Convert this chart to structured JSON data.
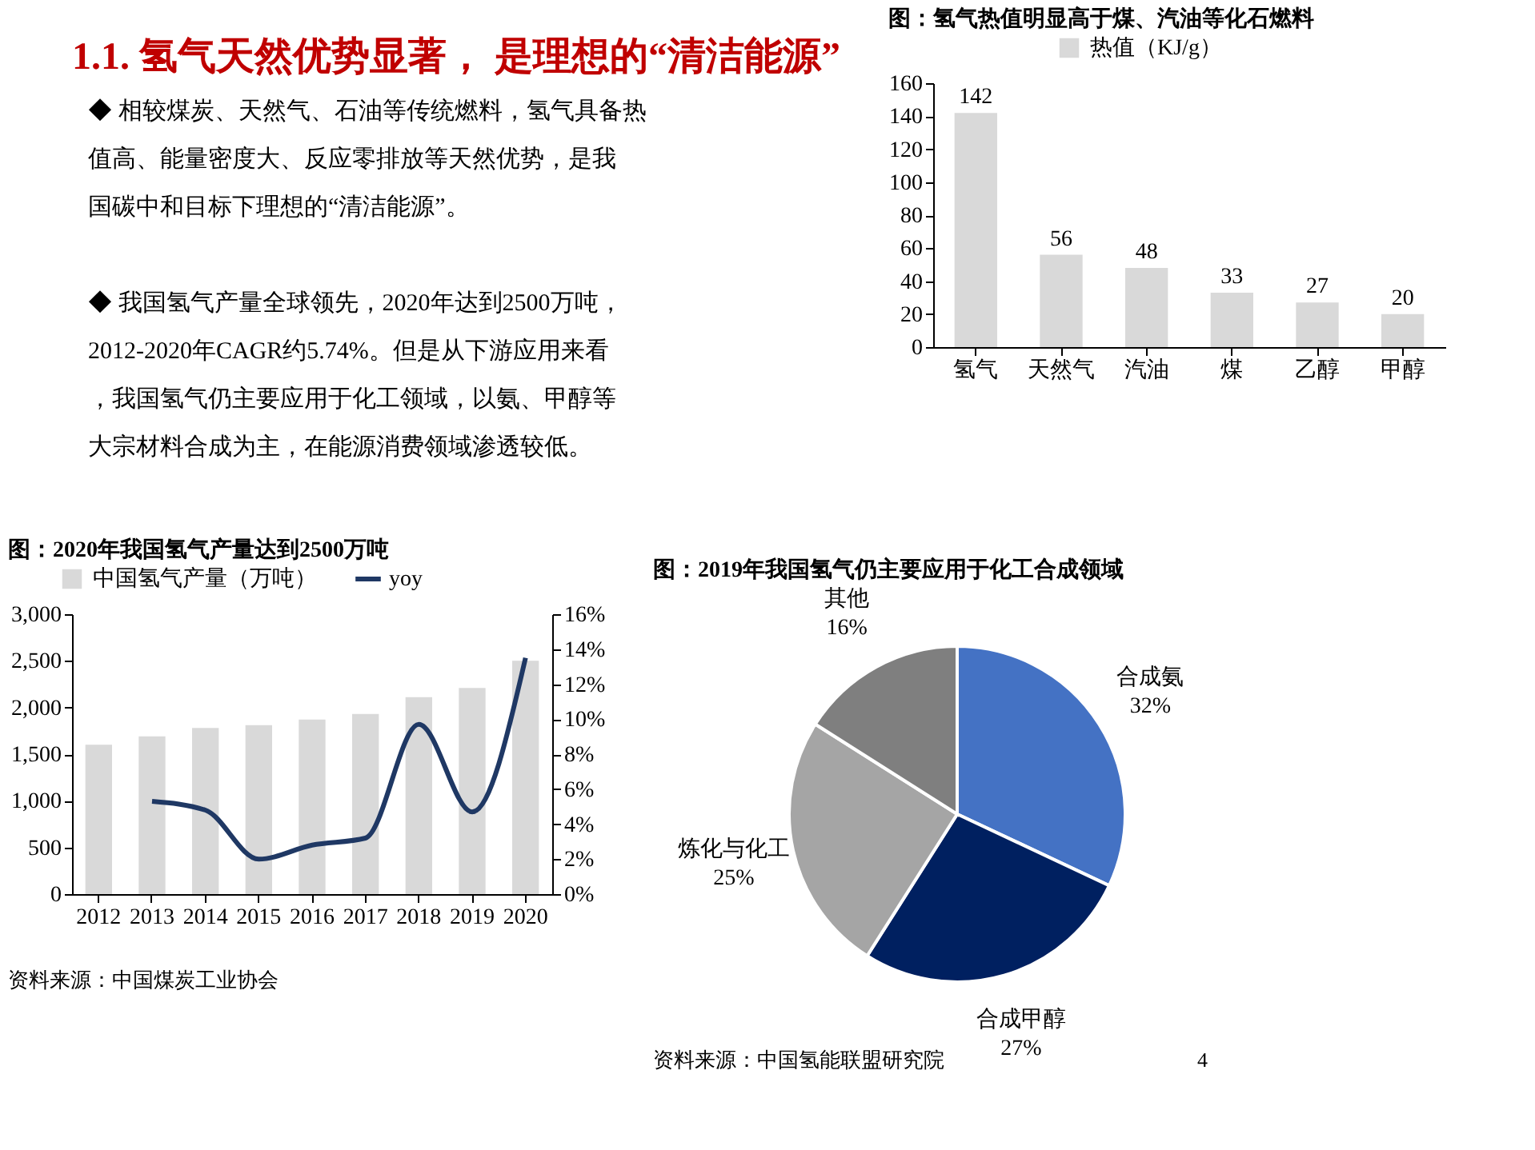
{
  "chart_data": [
    {
      "type": "other",
      "title": "1.1. 氢气天然优势显著， 是理想的“清洁能源”",
      "annotations": [
        "◆  相较煤炭、天然气、石油等传统燃料，氢气具备热值高、能量密度大、反应零排放等天然优势，是我国碳中和目标下理想的“清洁能源”。",
        "◆  我国氢气产量全球领先，2020年达到2500万吨，2012-2020年CAGR约5.74%。但是从下游应用来看，我国氢气仍主要应用于化工领域，以氨、甲醇等大宗材料合成为主，在能源消费领域渗透较低。"
      ]
    },
    {
      "type": "bar",
      "title": "图：氢气热值明显高于煤、汽油等化石燃料",
      "categories": [
        "氢气",
        "天然气",
        "汽油",
        "煤",
        "乙醇",
        "甲醇"
      ],
      "series": [
        {
          "name": "热值（KJ/g）",
          "color": "#d9d9d9",
          "values": [
            142,
            56,
            48,
            33,
            27,
            20
          ]
        }
      ],
      "ylim": [
        0,
        160
      ],
      "yticks": [
        0,
        20,
        40,
        60,
        80,
        100,
        120,
        140,
        160
      ],
      "data_labels": true,
      "legend": "top",
      "grid": false
    },
    {
      "type": "bar",
      "title": "图：2020年我国氢气产量达到2500万吨",
      "categories": [
        "2012",
        "2013",
        "2014",
        "2015",
        "2016",
        "2017",
        "2018",
        "2019",
        "2020"
      ],
      "series": [
        {
          "name": "中国氢气产量（万吨）",
          "color": "#d9d9d9",
          "values": [
            1600,
            1690,
            1780,
            1810,
            1870,
            1930,
            2110,
            2210,
            2500
          ]
        },
        {
          "name": "yoy",
          "type": "line",
          "axis": "y2",
          "color": "#1f3864",
          "values": [
            null,
            5.3,
            4.8,
            2.0,
            2.8,
            3.2,
            9.7,
            4.7,
            13.5
          ]
        }
      ],
      "ylim": [
        0,
        3000
      ],
      "yticks": [
        0,
        500,
        {
          "value": 1000,
          "label": "1,000"
        },
        {
          "value": 1500,
          "label": "1,500"
        },
        {
          "value": 2000,
          "label": "2,000"
        },
        {
          "value": 2500,
          "label": "2,500"
        },
        {
          "value": 3000,
          "label": "3,000"
        }
      ],
      "y2lim": [
        0,
        16
      ],
      "y2ticks": [
        {
          "value": 0,
          "label": "0%"
        },
        {
          "value": 2,
          "label": "2%"
        },
        {
          "value": 4,
          "label": "4%"
        },
        {
          "value": 6,
          "label": "6%"
        },
        {
          "value": 8,
          "label": "8%"
        },
        {
          "value": 10,
          "label": "10%"
        },
        {
          "value": 12,
          "label": "12%"
        },
        {
          "value": 14,
          "label": "14%"
        },
        {
          "value": 16,
          "label": "16%"
        }
      ],
      "legend": "top",
      "grid": false,
      "marker": "none",
      "line_style": "solid",
      "annotations": [
        "资料来源：中国煤炭工业协会"
      ]
    },
    {
      "type": "pie",
      "title": "图：2019年我国氢气仍主要应用于化工合成领域",
      "categories": [
        "合成氨",
        "合成甲醇",
        "炼化与化工",
        "其他"
      ],
      "values": [
        32,
        27,
        25,
        16
      ],
      "colors": [
        "#4472c4",
        "#002060",
        "#a5a5a5",
        "#7f7f7f"
      ],
      "value_labels": [
        "32%",
        "27%",
        "25%",
        "16%"
      ],
      "legend": false,
      "annotations": [
        "资料来源：中国氢能联盟研究院",
        "4"
      ]
    }
  ]
}
